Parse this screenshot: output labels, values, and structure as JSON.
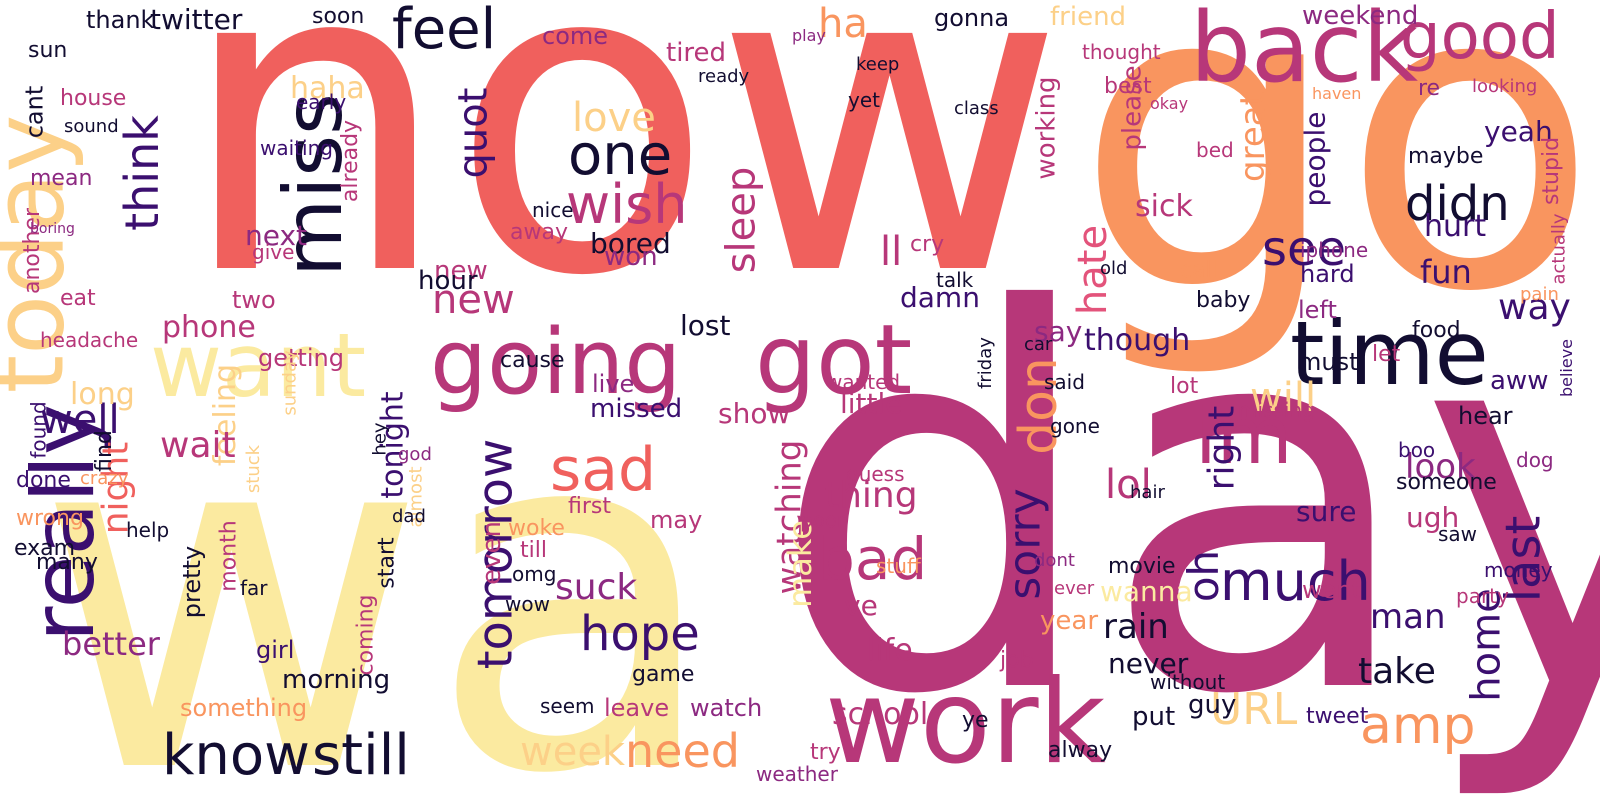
{
  "title": "Word cloud",
  "palette": {
    "c1": "#f0605d",
    "c2": "#fbeaa0",
    "c3": "#b73779",
    "c4": "#f9955f",
    "c5": "#fcd088",
    "c6": "#120d31",
    "c7": "#3b0f6f",
    "c8": "#e3537b",
    "c9": "#8c2981"
  },
  "words": [
    {
      "text": "now",
      "color": "c1"
    },
    {
      "text": "go",
      "color": "c4"
    },
    {
      "text": "day",
      "color": "c3"
    },
    {
      "text": "wa",
      "color": "c2"
    },
    {
      "text": "today",
      "color": "c5"
    },
    {
      "text": "really",
      "color": "c7"
    },
    {
      "text": "want",
      "color": "c2"
    },
    {
      "text": "miss",
      "color": "c6"
    },
    {
      "text": "going",
      "color": "c3"
    },
    {
      "text": "got",
      "color": "c3"
    },
    {
      "text": "work",
      "color": "c3"
    },
    {
      "text": "back",
      "color": "c3"
    },
    {
      "text": "good",
      "color": "c3"
    },
    {
      "text": "time",
      "color": "c6"
    },
    {
      "text": "im",
      "color": "c3"
    },
    {
      "text": "know",
      "color": "c6"
    },
    {
      "text": "still",
      "color": "c6"
    },
    {
      "text": "feel",
      "color": "c6"
    },
    {
      "text": "think",
      "color": "c7"
    },
    {
      "text": "one",
      "color": "c6"
    },
    {
      "text": "wish",
      "color": "c3"
    },
    {
      "text": "quot",
      "color": "c7"
    },
    {
      "text": "love",
      "color": "c5"
    },
    {
      "text": "sleep",
      "color": "c3"
    },
    {
      "text": "new",
      "color": "c3"
    },
    {
      "text": "sad",
      "color": "c1"
    },
    {
      "text": "need",
      "color": "c4"
    },
    {
      "text": "week",
      "color": "c5"
    },
    {
      "text": "hope",
      "color": "c7"
    },
    {
      "text": "tomorrow",
      "color": "c7"
    },
    {
      "text": "don",
      "color": "c4"
    },
    {
      "text": "much",
      "color": "c7"
    },
    {
      "text": "last",
      "color": "c7"
    },
    {
      "text": "amp",
      "color": "c4"
    },
    {
      "text": "didn",
      "color": "c6"
    },
    {
      "text": "see",
      "color": "c7"
    },
    {
      "text": "hate",
      "color": "c8"
    },
    {
      "text": "bad",
      "color": "c3"
    },
    {
      "text": "sorry",
      "color": "c7"
    },
    {
      "text": "lol",
      "color": "c3"
    },
    {
      "text": "home",
      "color": "c7"
    },
    {
      "text": "URL",
      "color": "c5"
    },
    {
      "text": "will",
      "color": "c5"
    },
    {
      "text": "night",
      "color": "c1"
    },
    {
      "text": "well",
      "color": "c7"
    },
    {
      "text": "way",
      "color": "c7"
    },
    {
      "text": "right",
      "color": "c7"
    },
    {
      "text": "oh",
      "color": "c7"
    },
    {
      "text": "watching",
      "color": "c3"
    },
    {
      "text": "school",
      "color": "c3"
    },
    {
      "text": "suck",
      "color": "c9"
    },
    {
      "text": "thing",
      "color": "c3"
    },
    {
      "text": "tonight",
      "color": "c7"
    },
    {
      "text": "morning",
      "color": "c6"
    },
    {
      "text": "feeling",
      "color": "c5"
    },
    {
      "text": "better",
      "color": "c9"
    },
    {
      "text": "wait",
      "color": "c3"
    },
    {
      "text": "life",
      "color": "c3"
    },
    {
      "text": "rain",
      "color": "c6"
    },
    {
      "text": "man",
      "color": "c7"
    },
    {
      "text": "take",
      "color": "c6"
    },
    {
      "text": "look",
      "color": "c9"
    },
    {
      "text": "sick",
      "color": "c3"
    },
    {
      "text": "weekend",
      "color": "c9"
    },
    {
      "text": "phone",
      "color": "c3"
    },
    {
      "text": "new",
      "color": "c3"
    },
    {
      "text": "haha",
      "color": "c5"
    },
    {
      "text": "bored",
      "color": "c6"
    },
    {
      "text": "won",
      "color": "c9"
    },
    {
      "text": "hour",
      "color": "c6"
    },
    {
      "text": "next",
      "color": "c9"
    },
    {
      "text": "ll",
      "color": "c3"
    },
    {
      "text": "damn",
      "color": "c7"
    },
    {
      "text": "lost",
      "color": "c6"
    },
    {
      "text": "missed",
      "color": "c7"
    },
    {
      "text": "little",
      "color": "c3"
    },
    {
      "text": "show",
      "color": "c3"
    },
    {
      "text": "wanted",
      "color": "c3"
    },
    {
      "text": "never",
      "color": "c6"
    },
    {
      "text": "though",
      "color": "c7"
    },
    {
      "text": "say",
      "color": "c9"
    },
    {
      "text": "people",
      "color": "c7"
    },
    {
      "text": "great",
      "color": "c4"
    },
    {
      "text": "please",
      "color": "c3"
    },
    {
      "text": "working",
      "color": "c3"
    },
    {
      "text": "fun",
      "color": "c7"
    },
    {
      "text": "hurt",
      "color": "c7"
    },
    {
      "text": "yeah",
      "color": "c7"
    },
    {
      "text": "maybe",
      "color": "c6"
    },
    {
      "text": "iphone",
      "color": "c9"
    },
    {
      "text": "call",
      "color": "c4"
    },
    {
      "text": "hard",
      "color": "c7"
    },
    {
      "text": "left",
      "color": "c9"
    },
    {
      "text": "must",
      "color": "c6"
    },
    {
      "text": "aww",
      "color": "c7"
    },
    {
      "text": "hear",
      "color": "c6"
    },
    {
      "text": "someone",
      "color": "c6"
    },
    {
      "text": "ugh",
      "color": "c3"
    },
    {
      "text": "sure",
      "color": "c7"
    },
    {
      "text": "party",
      "color": "c3"
    },
    {
      "text": "money",
      "color": "c7"
    },
    {
      "text": "girl",
      "color": "c7"
    },
    {
      "text": "month",
      "color": "c3"
    },
    {
      "text": "pretty",
      "color": "c6"
    },
    {
      "text": "coming",
      "color": "c3"
    },
    {
      "text": "long",
      "color": "c5"
    },
    {
      "text": "found",
      "color": "c7"
    },
    {
      "text": "done",
      "color": "c7"
    },
    {
      "text": "wrong",
      "color": "c4"
    },
    {
      "text": "exam",
      "color": "c6"
    },
    {
      "text": "many",
      "color": "c6"
    },
    {
      "text": "help",
      "color": "c6"
    },
    {
      "text": "leave",
      "color": "c3"
    },
    {
      "text": "watch",
      "color": "c9"
    },
    {
      "text": "woke",
      "color": "c4"
    },
    {
      "text": "omg",
      "color": "c6"
    },
    {
      "text": "till",
      "color": "c3"
    },
    {
      "text": "wow",
      "color": "c6"
    },
    {
      "text": "game",
      "color": "c6"
    },
    {
      "text": "movie",
      "color": "c6"
    },
    {
      "text": "job",
      "color": "c3"
    },
    {
      "text": "wanna",
      "color": "c2"
    },
    {
      "text": "guy",
      "color": "c6"
    },
    {
      "text": "put",
      "color": "c6"
    },
    {
      "text": "weather",
      "color": "c9"
    },
    {
      "text": "try",
      "color": "c3"
    },
    {
      "text": "tweet",
      "color": "c7"
    },
    {
      "text": "went",
      "color": "c3"
    },
    {
      "text": "twitter",
      "color": "c6"
    },
    {
      "text": "thank",
      "color": "c6"
    },
    {
      "text": "come",
      "color": "c9"
    },
    {
      "text": "tired",
      "color": "c3"
    },
    {
      "text": "friend",
      "color": "c5"
    },
    {
      "text": "gonna",
      "color": "c6"
    },
    {
      "text": "soon",
      "color": "c6"
    },
    {
      "text": "ha",
      "color": "c4"
    },
    {
      "text": "year",
      "color": "c4"
    },
    {
      "text": "even",
      "color": "c3"
    },
    {
      "text": "make",
      "color": "c2"
    },
    {
      "text": "something",
      "color": "c4"
    },
    {
      "text": "almost",
      "color": "c5"
    },
    {
      "text": "start",
      "color": "c6"
    },
    {
      "text": "getting",
      "color": "c3"
    },
    {
      "text": "cause",
      "color": "c6"
    },
    {
      "text": "live",
      "color": "c9"
    },
    {
      "text": "first",
      "color": "c3"
    },
    {
      "text": "may",
      "color": "c3"
    },
    {
      "text": "seem",
      "color": "c6"
    },
    {
      "text": "baby",
      "color": "c6"
    },
    {
      "text": "lot",
      "color": "c3"
    },
    {
      "text": "missing",
      "color": "c3"
    },
    {
      "text": "let",
      "color": "c3"
    },
    {
      "text": "food",
      "color": "c6"
    },
    {
      "text": "two",
      "color": "c3"
    },
    {
      "text": "eat",
      "color": "c3"
    },
    {
      "text": "headache",
      "color": "c3"
    },
    {
      "text": "another",
      "color": "c3"
    },
    {
      "text": "house",
      "color": "c3"
    },
    {
      "text": "cant",
      "color": "c6"
    },
    {
      "text": "mean",
      "color": "c9"
    },
    {
      "text": "sun",
      "color": "c6"
    },
    {
      "text": "boring",
      "color": "c9"
    },
    {
      "text": "crazy",
      "color": "c4"
    },
    {
      "text": "ready",
      "color": "c6"
    },
    {
      "text": "nice",
      "color": "c6"
    },
    {
      "text": "away",
      "color": "c3"
    },
    {
      "text": "sound",
      "color": "c6"
    },
    {
      "text": "already",
      "color": "c3"
    },
    {
      "text": "waiting",
      "color": "c7"
    },
    {
      "text": "early",
      "color": "c7"
    },
    {
      "text": "give",
      "color": "c3"
    },
    {
      "text": "dad",
      "color": "c6"
    },
    {
      "text": "hey",
      "color": "c6"
    },
    {
      "text": "stuck",
      "color": "c5"
    },
    {
      "text": "talk",
      "color": "c6"
    },
    {
      "text": "class",
      "color": "c6"
    },
    {
      "text": "best",
      "color": "c3"
    },
    {
      "text": "bed",
      "color": "c3"
    },
    {
      "text": "thought",
      "color": "c3"
    },
    {
      "text": "okay",
      "color": "c3"
    },
    {
      "text": "play",
      "color": "c9"
    },
    {
      "text": "looking",
      "color": "c3"
    },
    {
      "text": "re",
      "color": "c9"
    },
    {
      "text": "haven",
      "color": "c4"
    },
    {
      "text": "stupid",
      "color": "c3"
    },
    {
      "text": "actually",
      "color": "c3"
    },
    {
      "text": "believe",
      "color": "c7"
    },
    {
      "text": "pain",
      "color": "c4"
    },
    {
      "text": "boo",
      "color": "c7"
    },
    {
      "text": "saw",
      "color": "c6"
    },
    {
      "text": "ever",
      "color": "c3"
    },
    {
      "text": "gone",
      "color": "c6"
    },
    {
      "text": "said",
      "color": "c6"
    },
    {
      "text": "dog",
      "color": "c9"
    },
    {
      "text": "poor",
      "color": "c3"
    },
    {
      "text": "guess",
      "color": "c3"
    },
    {
      "text": "stuff",
      "color": "c4"
    },
    {
      "text": "cry",
      "color": "c3"
    },
    {
      "text": "yet",
      "color": "c6"
    },
    {
      "text": "keep",
      "color": "c6"
    },
    {
      "text": "sunday",
      "color": "c5"
    },
    {
      "text": "god",
      "color": "c9"
    },
    {
      "text": "car",
      "color": "c6"
    },
    {
      "text": "friday",
      "color": "c6"
    },
    {
      "text": "old",
      "color": "c6"
    },
    {
      "text": "dont",
      "color": "c9"
    },
    {
      "text": "hair",
      "color": "c6"
    },
    {
      "text": "ye",
      "color": "c6"
    },
    {
      "text": "alway",
      "color": "c6"
    },
    {
      "text": "far",
      "color": "c6"
    },
    {
      "text": "find",
      "color": "c6"
    },
    {
      "text": "ve",
      "color": "c3"
    },
    {
      "text": "without",
      "color": "c6"
    }
  ]
}
